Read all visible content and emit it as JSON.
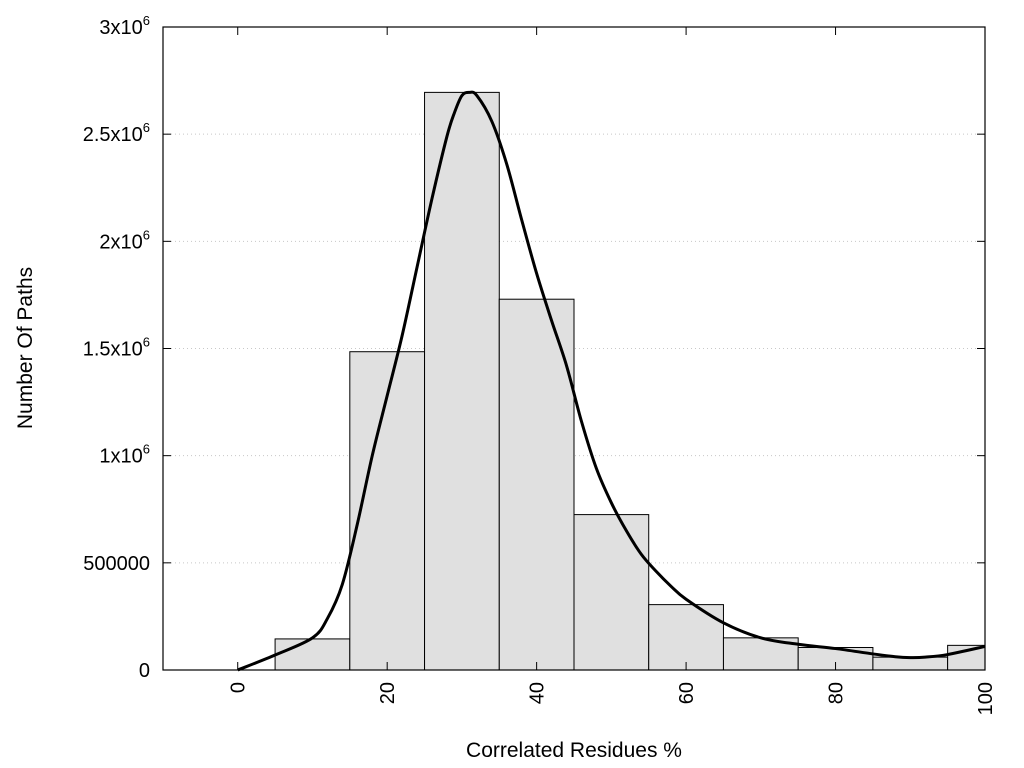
{
  "chart_data": {
    "type": "bar",
    "xlabel": "Correlated Residues %",
    "ylabel": "Number Of Paths",
    "xlim": [
      -10,
      100
    ],
    "ylim": [
      0,
      3000000
    ],
    "grid": true,
    "bin_width": 10,
    "bin_centers": [
      10,
      20,
      30,
      40,
      50,
      60,
      70,
      80,
      90,
      100
    ],
    "values": [
      145000,
      1485000,
      2695000,
      1730000,
      725000,
      305000,
      150000,
      105000,
      60000,
      115000
    ],
    "colors": {
      "bar_fill": "#e0e0e0",
      "bar_stroke": "#000000",
      "curve": "#000000",
      "grid": "#c8c8c8"
    },
    "x_ticks": [
      {
        "value": 0,
        "label": "0"
      },
      {
        "value": 20,
        "label": "20"
      },
      {
        "value": 40,
        "label": "40"
      },
      {
        "value": 60,
        "label": "60"
      },
      {
        "value": 80,
        "label": "80"
      },
      {
        "value": 100,
        "label": "100"
      }
    ],
    "y_ticks": [
      {
        "value": 0,
        "label": "0",
        "sup": ""
      },
      {
        "value": 500000,
        "label": "500000",
        "sup": ""
      },
      {
        "value": 1000000,
        "label": "1x10",
        "sup": "6"
      },
      {
        "value": 1500000,
        "label": "1.5x10",
        "sup": "6"
      },
      {
        "value": 2000000,
        "label": "2x10",
        "sup": "6"
      },
      {
        "value": 2500000,
        "label": "2.5x10",
        "sup": "6"
      },
      {
        "value": 3000000,
        "label": "3x10",
        "sup": "6"
      }
    ],
    "curve": {
      "x": [
        0,
        5,
        10,
        12,
        14,
        16,
        18,
        20,
        22,
        24,
        26,
        28,
        29,
        30,
        31,
        32,
        34,
        36,
        38,
        40,
        42,
        44,
        46,
        48,
        50,
        52,
        54,
        56,
        58,
        60,
        65,
        70,
        75,
        80,
        85,
        88,
        90,
        92,
        95,
        100
      ],
      "y": [
        0,
        70000,
        150000,
        240000,
        400000,
        680000,
        1000000,
        1280000,
        1560000,
        1880000,
        2200000,
        2490000,
        2600000,
        2680000,
        2695000,
        2680000,
        2560000,
        2360000,
        2100000,
        1850000,
        1630000,
        1420000,
        1160000,
        940000,
        780000,
        650000,
        540000,
        460000,
        390000,
        330000,
        220000,
        150000,
        120000,
        100000,
        75000,
        62000,
        58000,
        60000,
        72000,
        110000
      ]
    }
  }
}
